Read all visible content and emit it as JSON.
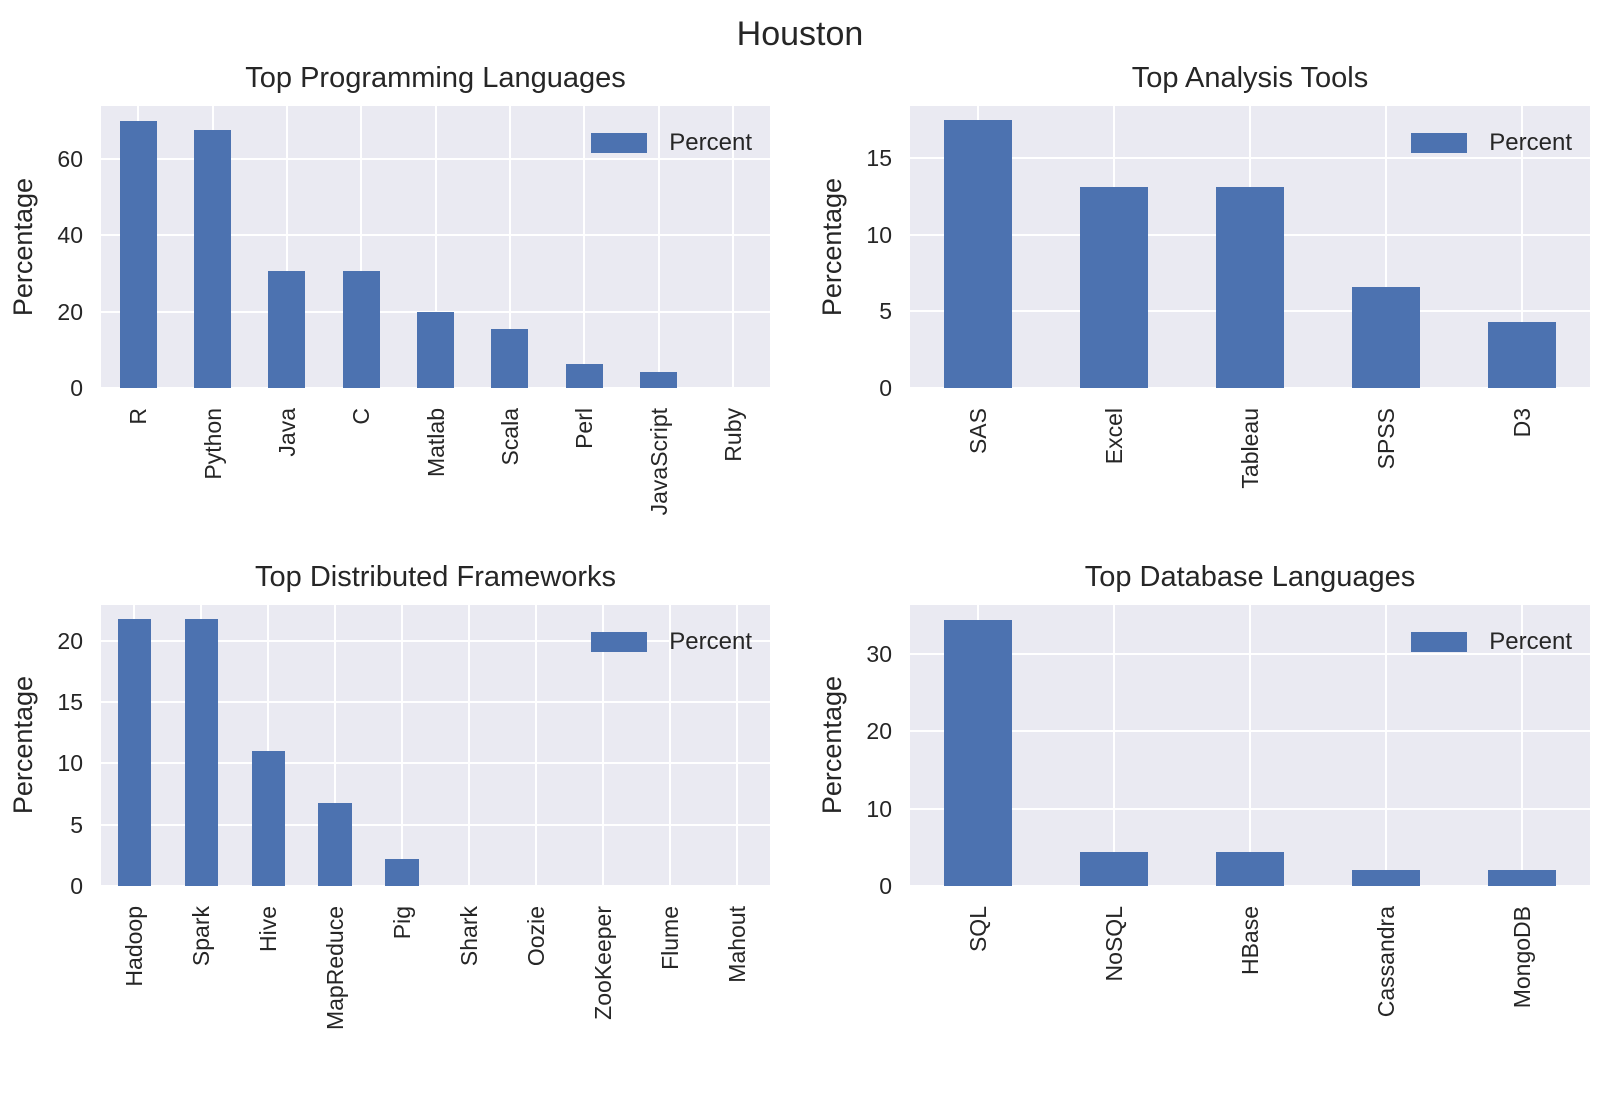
{
  "figure": {
    "suptitle": "Houston"
  },
  "colors": {
    "bar": "#4c72b0",
    "plot_bg": "#eaeaf2",
    "grid": "#ffffff",
    "text": "#262626",
    "background": "#ffffff"
  },
  "chart_data": [
    {
      "type": "bar",
      "title": "Top Programming Languages",
      "ylabel": "Percentage",
      "legend_label": "Percent",
      "legend_position": "upper right",
      "grid": true,
      "categories": [
        "R",
        "Python",
        "Java",
        "C",
        "Matlab",
        "Scala",
        "Perl",
        "JavaScript",
        "Ruby"
      ],
      "values": [
        70,
        67.5,
        30.7,
        30.7,
        19.8,
        15.4,
        6.4,
        4.3,
        0
      ],
      "yticks": [
        0,
        20,
        40,
        60
      ],
      "ylim": [
        0,
        73.8
      ]
    },
    {
      "type": "bar",
      "title": "Top Analysis Tools",
      "ylabel": "Percentage",
      "legend_label": "Percent",
      "legend_position": "upper right",
      "grid": true,
      "categories": [
        "SAS",
        "Excel",
        "Tableau",
        "SPSS",
        "D3"
      ],
      "values": [
        17.5,
        13.1,
        13.1,
        6.6,
        4.3
      ],
      "yticks": [
        0,
        5,
        10,
        15
      ],
      "ylim": [
        0,
        18.4
      ]
    },
    {
      "type": "bar",
      "title": "Top Distributed Frameworks",
      "ylabel": "Percentage",
      "legend_label": "Percent",
      "legend_position": "upper right",
      "grid": true,
      "categories": [
        "Hadoop",
        "Spark",
        "Hive",
        "MapReduce",
        "Pig",
        "Shark",
        "Oozie",
        "ZooKeeper",
        "Flume",
        "Mahout"
      ],
      "values": [
        21.8,
        21.8,
        11.0,
        6.8,
        2.2,
        0,
        0,
        0,
        0,
        0
      ],
      "yticks": [
        0,
        5,
        10,
        15,
        20
      ],
      "ylim": [
        0,
        22.9
      ]
    },
    {
      "type": "bar",
      "title": "Top Database Languages",
      "ylabel": "Percentage",
      "legend_label": "Percent",
      "legend_position": "upper right",
      "grid": true,
      "categories": [
        "SQL",
        "NoSQL",
        "HBase",
        "Cassandra",
        "MongoDB"
      ],
      "values": [
        34.4,
        4.4,
        4.4,
        2.1,
        2.1
      ],
      "yticks": [
        0,
        10,
        20,
        30
      ],
      "ylim": [
        0,
        36.3
      ]
    }
  ]
}
